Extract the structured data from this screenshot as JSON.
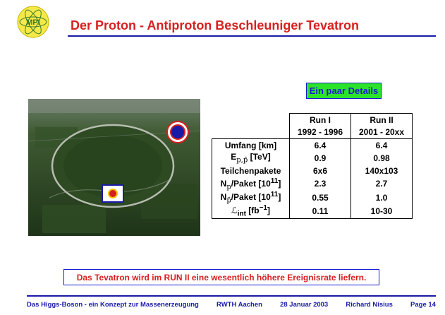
{
  "logo_text": "MPI",
  "title": "Der Proton - Antiproton Beschleuniger Tevatron",
  "details_button": "Ein paar Details",
  "table": {
    "col_headers": [
      "Run I",
      "Run II"
    ],
    "col_subheaders": [
      "1992 - 1996",
      "2001 - 20xx"
    ],
    "rows": [
      {
        "label": "Umfang [km]",
        "run1": "6.4",
        "run2": "6.4"
      },
      {
        "label": "E",
        "label_sub": "p,p̄",
        "label_suffix": " [TeV]",
        "run1": "0.9",
        "run2": "0.98"
      },
      {
        "label": "Teilchenpakete",
        "run1": "6x6",
        "run2": "140x103"
      },
      {
        "label": "N",
        "label_sub": "p",
        "label_suffix": "/Paket [10",
        "label_sup": "11",
        "label_end": "]",
        "run1": "2.3",
        "run2": "2.7"
      },
      {
        "label": "N",
        "label_sub": "p̄",
        "label_suffix": "/Paket [10",
        "label_sup": "11",
        "label_end": "]",
        "run1": "0.55",
        "run2": "1.0"
      },
      {
        "label": "ℒ",
        "label_sub": "int",
        "label_suffix": " [fb",
        "label_sup": "−1",
        "label_end": "]",
        "run1": "0.11",
        "run2": "10-30"
      }
    ]
  },
  "note": "Das Tevatron wird im RUN II eine wesentlich höhere Ereignisrate liefern.",
  "footer": {
    "talk": "Das Higgs-Boson - ein Konzept zur Massenerzeugung",
    "institute": "RWTH Aachen",
    "date": "28 Januar 2003",
    "author": "Richard Nisius",
    "page": "Page 14"
  },
  "colors": {
    "title": "#d62020",
    "rule": "#1a1aa8",
    "button_bg": "#2ce32c",
    "button_text": "#1a1ad0"
  }
}
